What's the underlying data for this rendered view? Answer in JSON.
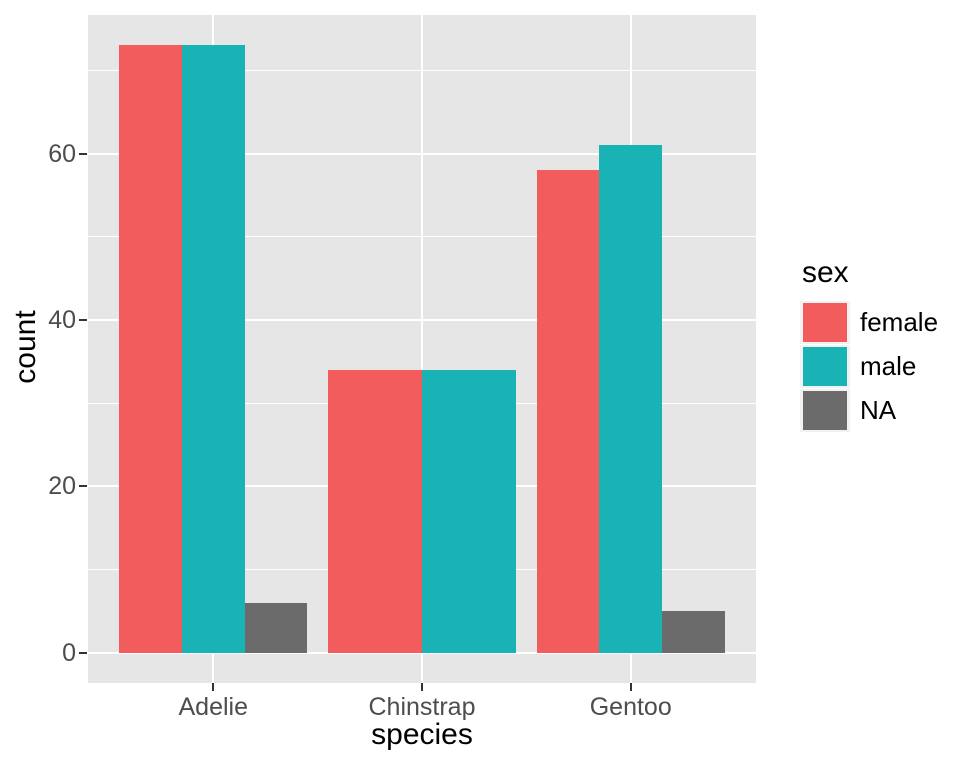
{
  "chart_data": {
    "type": "bar",
    "title": "",
    "xlabel": "species",
    "ylabel": "count",
    "categories": [
      "Adelie",
      "Chinstrap",
      "Gentoo"
    ],
    "series": [
      {
        "name": "female",
        "color": "#F25C5C",
        "values": [
          73,
          34,
          58
        ]
      },
      {
        "name": "male",
        "color": "#19B3B5",
        "values": [
          73,
          34,
          61
        ]
      },
      {
        "name": "NA",
        "color": "#6B6B6B",
        "values": [
          6,
          null,
          5
        ]
      }
    ],
    "y_ticks": [
      0,
      20,
      40,
      60
    ],
    "y_minor_ticks": [
      10,
      30,
      50,
      70
    ],
    "ylim": [
      -3.65,
      76.65
    ],
    "legend": {
      "title": "sex",
      "position": "right",
      "entries": [
        "female",
        "male",
        "NA"
      ]
    },
    "grid": "horizontal major+minor, vertical major at category centers",
    "panel_background": "#E6E6E6",
    "gridline_color": "#FFFFFF",
    "tick_label_color": "#4D4D4D",
    "axis_title_color": "#000000"
  }
}
